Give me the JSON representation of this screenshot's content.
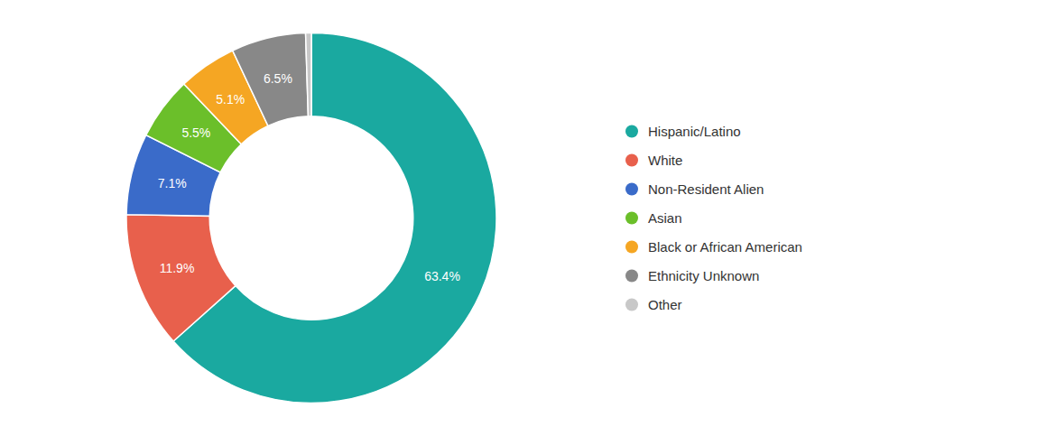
{
  "chart_data": {
    "type": "donut",
    "categories": [
      "Hispanic/Latino",
      "White",
      "Non-Resident Alien",
      "Asian",
      "Black or African American",
      "Ethnicity Unknown",
      "Other"
    ],
    "values": [
      63.4,
      11.9,
      7.1,
      5.5,
      5.1,
      6.5,
      0.5
    ],
    "value_labels": [
      "63.4%",
      "11.9%",
      "7.1%",
      "5.5%",
      "5.1%",
      "6.5%",
      null
    ],
    "colors": [
      "#1AA9A0",
      "#E8604C",
      "#3A6BC9",
      "#6BBF2A",
      "#F5A623",
      "#888888",
      "#C8C8C8"
    ],
    "data_labels": true,
    "legend": "right"
  }
}
